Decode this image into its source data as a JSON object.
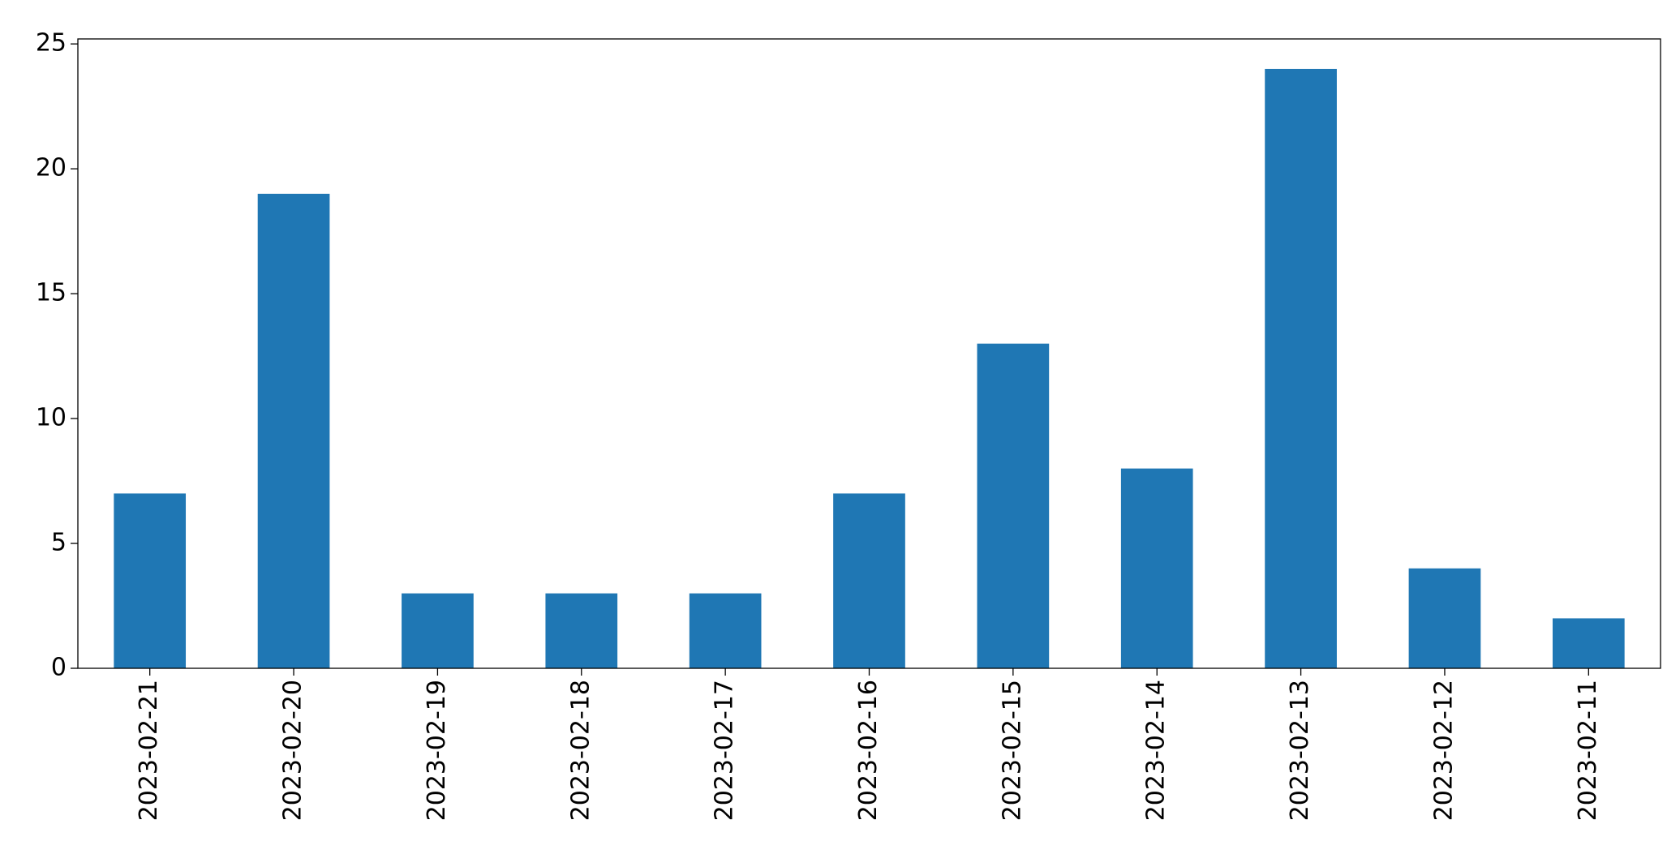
{
  "chart_data": {
    "type": "bar",
    "categories": [
      "2023-02-21",
      "2023-02-20",
      "2023-02-19",
      "2023-02-18",
      "2023-02-17",
      "2023-02-16",
      "2023-02-15",
      "2023-02-14",
      "2023-02-13",
      "2023-02-12",
      "2023-02-11"
    ],
    "values": [
      7,
      19,
      3,
      3,
      3,
      7,
      13,
      8,
      24,
      4,
      2
    ],
    "color": "#1f77b4",
    "ylim": [
      0,
      25.2
    ],
    "yticks": [
      0,
      5,
      10,
      15,
      20,
      25
    ],
    "grid": false
  }
}
